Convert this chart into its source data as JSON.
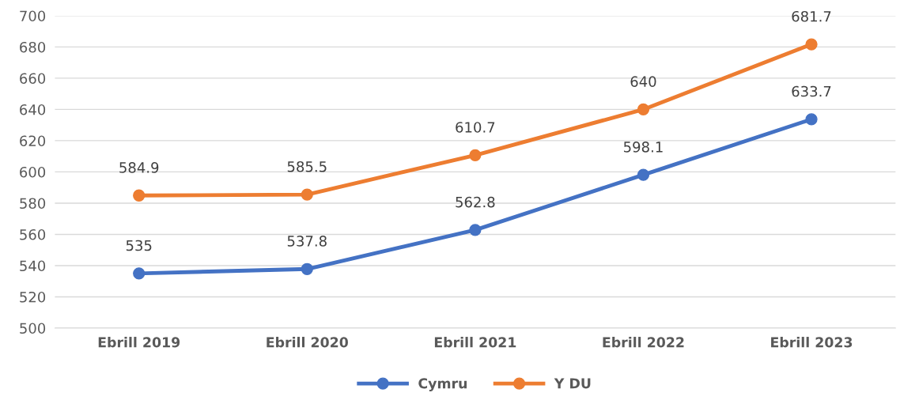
{
  "chart_data": {
    "type": "line",
    "categories": [
      "Ebrill 2019",
      "Ebrill 2020",
      "Ebrill 2021",
      "Ebrill 2022",
      "Ebrill 2023"
    ],
    "series": [
      {
        "name": "Cymru",
        "color": "#4472c4",
        "values": [
          535,
          537.8,
          562.8,
          598.1,
          633.7
        ]
      },
      {
        "name": "Y DU",
        "color": "#ed7d31",
        "values": [
          584.9,
          585.5,
          610.7,
          640,
          681.7
        ]
      }
    ],
    "ylim": [
      500,
      700
    ],
    "yticks": [
      500,
      520,
      540,
      560,
      580,
      600,
      620,
      640,
      660,
      680,
      700
    ],
    "grid": "y",
    "legend": "bottom",
    "marker": "circle",
    "line_style": "solid",
    "data_labels": true
  }
}
